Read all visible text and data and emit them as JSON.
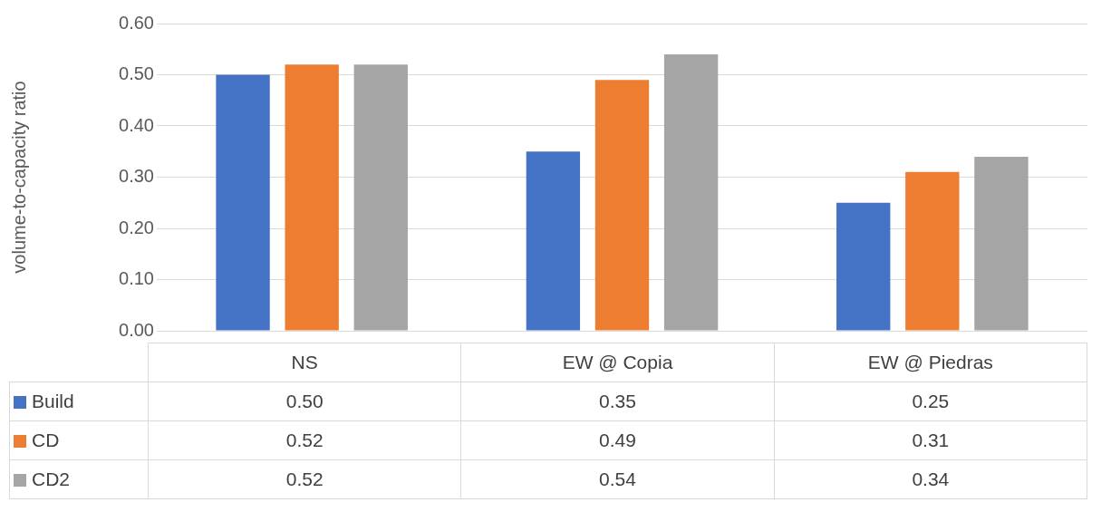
{
  "chart_data": {
    "type": "bar",
    "ylabel": "volume-to-capacity ratio",
    "categories": [
      "NS",
      "EW @ Copia",
      "EW @ Piedras"
    ],
    "series": [
      {
        "name": "Build",
        "color": "#4472c4",
        "values": [
          0.5,
          0.35,
          0.25
        ],
        "value_labels": [
          "0.50",
          "0.35",
          "0.25"
        ]
      },
      {
        "name": "CD",
        "color": "#ed7d31",
        "values": [
          0.52,
          0.49,
          0.31
        ],
        "value_labels": [
          "0.52",
          "0.49",
          "0.31"
        ]
      },
      {
        "name": "CD2",
        "color": "#a5a5a5",
        "values": [
          0.52,
          0.54,
          0.34
        ],
        "value_labels": [
          "0.52",
          "0.54",
          "0.34"
        ]
      }
    ],
    "ylim": [
      0,
      0.6
    ],
    "yticks": [
      {
        "value": 0,
        "label": "0.00"
      },
      {
        "value": 0.1,
        "label": "0.10"
      },
      {
        "value": 0.2,
        "label": "0.20"
      },
      {
        "value": 0.3,
        "label": "0.30"
      },
      {
        "value": 0.4,
        "label": "0.40"
      },
      {
        "value": 0.5,
        "label": "0.50"
      },
      {
        "value": 0.6,
        "label": "0.60"
      }
    ],
    "grid": "y",
    "legend": "bottom"
  }
}
